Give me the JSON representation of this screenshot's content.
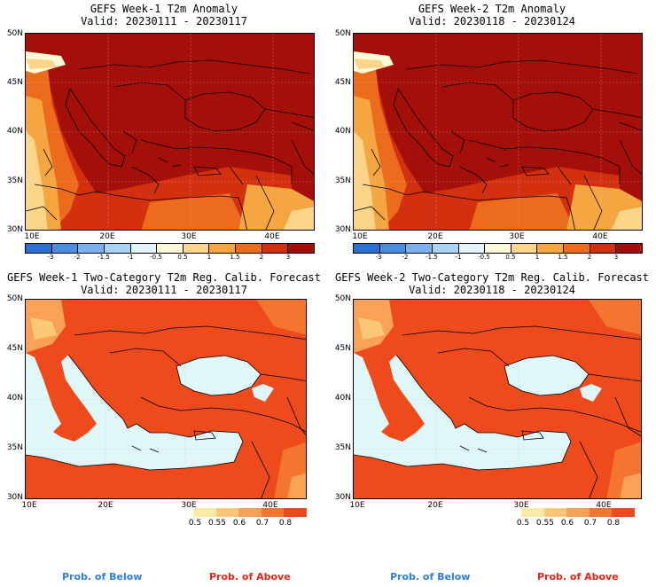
{
  "panels": [
    {
      "title": "GEFS Week-1 T2m Anomaly",
      "valid": "Valid: 20230111 - 20230117",
      "lat_labels": [
        "50N",
        "45N",
        "40N",
        "35N",
        "30N"
      ],
      "lon_labels": [
        "10E",
        "20E",
        "30E",
        "40E"
      ]
    },
    {
      "title": "GEFS Week-2 T2m Anomaly",
      "valid": "Valid: 20230118 - 20230124",
      "lat_labels": [
        "50N",
        "45N",
        "40N",
        "35N",
        "30N"
      ],
      "lon_labels": [
        "10E",
        "20E",
        "30E",
        "40E"
      ]
    },
    {
      "title": "GEFS Week-1 Two-Category T2m Reg. Calib. Forecast",
      "valid": "Valid: 20230111 - 20230117",
      "lat_labels": [
        "50N",
        "45N",
        "40N",
        "35N",
        "30N"
      ],
      "lon_labels": [
        "10E",
        "20E",
        "30E",
        "40E"
      ]
    },
    {
      "title": "GEFS Week-2 Two-Category T2m Reg. Calib. Forecast",
      "valid": "Valid: 20230118 - 20230124",
      "lat_labels": [
        "50N",
        "45N",
        "40N",
        "35N",
        "30N"
      ],
      "lon_labels": [
        "10E",
        "20E",
        "30E",
        "40E"
      ]
    }
  ],
  "anomaly_colorbar": {
    "ticks": [
      "-3",
      "-2",
      "-1.5",
      "-1",
      "-0.5",
      "0.5",
      "1",
      "1.5",
      "2",
      "3"
    ],
    "colors": [
      "#2b6fd0",
      "#4a8ee0",
      "#7ab2ee",
      "#aad2f6",
      "#e3f5fb",
      "#fffbd8",
      "#fcd58a",
      "#f5a640",
      "#ec6b1d",
      "#d3300f",
      "#a50f0a"
    ]
  },
  "prob_colorbar": {
    "ticks": [
      "0.5",
      "0.55",
      "0.6",
      "0.7",
      "0.8"
    ],
    "colors": [
      "#fde9a6",
      "#fcc776",
      "#f9a154",
      "#f4752f",
      "#ee4a1b"
    ]
  },
  "footer": {
    "below_label": "Prob. of Below",
    "above_label": "Prob. of Above",
    "below_color": "#2f7fd6",
    "above_color": "#e0261a"
  },
  "colors": {
    "dark_red": "#a50f0a",
    "red": "#d3300f",
    "orange_red": "#ec6b1d",
    "orange": "#f5a640",
    "light_orange": "#fcd58a",
    "pale_yellow": "#fffbd8",
    "sea": "#e0f7fa",
    "prob_red": "#ee4a1b"
  }
}
